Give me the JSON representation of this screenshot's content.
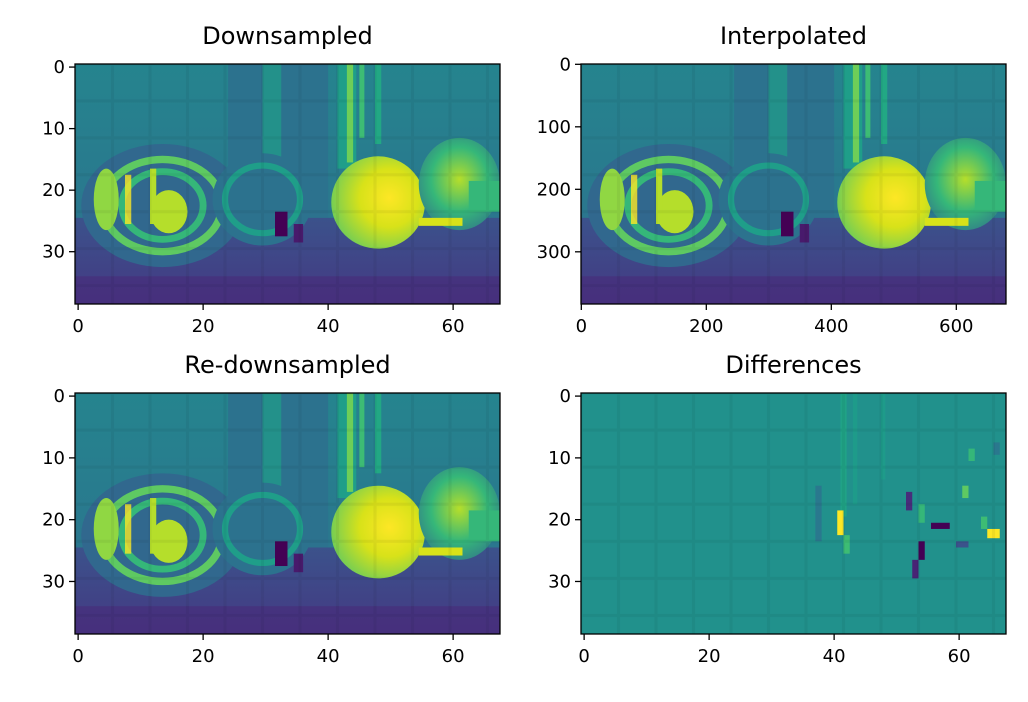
{
  "colors": {
    "background": "#ffffff",
    "viridis": [
      "#440154",
      "#3b528b",
      "#21918c",
      "#5ec962",
      "#fde725"
    ]
  },
  "chart_data": [
    {
      "type": "heatmap",
      "title": "Downsampled",
      "colormap": "viridis",
      "xlim": [
        -0.5,
        67.5
      ],
      "ylim": [
        38.5,
        -0.5
      ],
      "xticks": [
        0,
        20,
        40,
        60
      ],
      "yticks": [
        0,
        10,
        20,
        30
      ],
      "grid": false,
      "xlabel": "",
      "ylabel": ""
    },
    {
      "type": "heatmap",
      "title": "Interpolated",
      "colormap": "viridis",
      "xlim": [
        -0.5,
        679.5
      ],
      "ylim": [
        383.5,
        -0.5
      ],
      "xticks": [
        0,
        200,
        400,
        600
      ],
      "yticks": [
        0,
        100,
        200,
        300
      ],
      "grid": false,
      "xlabel": "",
      "ylabel": ""
    },
    {
      "type": "heatmap",
      "title": "Re-downsampled",
      "colormap": "viridis",
      "xlim": [
        -0.5,
        67.5
      ],
      "ylim": [
        38.5,
        -0.5
      ],
      "xticks": [
        0,
        20,
        40,
        60
      ],
      "yticks": [
        0,
        10,
        20,
        30
      ],
      "grid": false,
      "xlabel": "",
      "ylabel": ""
    },
    {
      "type": "heatmap",
      "title": "Differences",
      "colormap": "viridis",
      "xlim": [
        -0.5,
        67.5
      ],
      "ylim": [
        38.5,
        -0.5
      ],
      "xticks": [
        0,
        20,
        40,
        60
      ],
      "yticks": [
        0,
        10,
        20,
        30
      ],
      "grid": false,
      "xlabel": "",
      "ylabel": ""
    }
  ]
}
